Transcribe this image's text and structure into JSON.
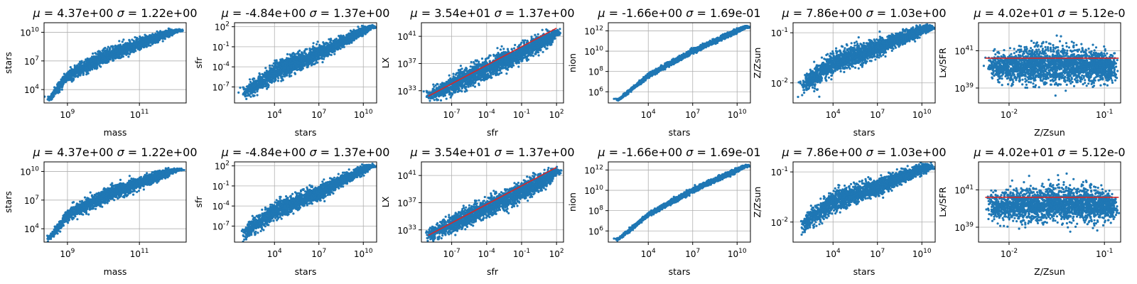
{
  "chart_data": [
    {
      "type": "scatter",
      "title": "$\\mu$ = 4.37e+00 $\\sigma$ = 1.22e+00",
      "title_mu": "4.37e+00",
      "title_sigma": "1.22e+00",
      "xlabel": "mass",
      "ylabel": "stars",
      "xscale": "log",
      "yscale": "log",
      "xlim_exp": [
        8.35,
        12.3
      ],
      "ylim_exp": [
        2.6,
        11.0
      ],
      "xticks_exp": [
        9,
        11
      ],
      "yticks_exp": [
        4,
        7,
        10
      ],
      "grid": true,
      "color": "#1f77b4",
      "cloud_exp": [
        [
          8.5,
          3.0,
          0.3
        ],
        [
          9.0,
          5.4,
          0.55
        ],
        [
          10.0,
          7.4,
          0.6
        ],
        [
          11.0,
          8.8,
          0.55
        ],
        [
          11.8,
          9.9,
          0.3
        ],
        [
          12.1,
          10.2,
          0.1
        ]
      ],
      "fit_line": null
    },
    {
      "type": "scatter",
      "title": "$\\mu$ = -4.84e+00 $\\sigma$ = 1.37e+00",
      "title_mu": "-4.84e+00",
      "title_sigma": "1.37e+00",
      "xlabel": "stars",
      "ylabel": "sfr",
      "xscale": "log",
      "yscale": "log",
      "xlim_exp": [
        1.3,
        10.9
      ],
      "ylim_exp": [
        -9.4,
        2.6
      ],
      "xticks_exp": [
        4,
        7,
        10
      ],
      "yticks_exp": [
        -7,
        -4,
        -1,
        2
      ],
      "grid": true,
      "color": "#1f77b4",
      "cloud_exp": [
        [
          2.0,
          -8.0,
          1.0
        ],
        [
          4.0,
          -4.8,
          1.2
        ],
        [
          7.0,
          -2.0,
          1.0
        ],
        [
          10.0,
          1.4,
          0.5
        ],
        [
          10.6,
          2.0,
          0.2
        ]
      ],
      "fit_line": null
    },
    {
      "type": "scatter",
      "title": "$\\mu$ = 3.54e+01 $\\sigma$ = 1.37e+00",
      "title_mu": "3.54e+01",
      "title_sigma": "1.37e+00",
      "xlabel": "sfr",
      "ylabel": "LX",
      "xscale": "log",
      "yscale": "log",
      "xlim_exp": [
        -9.6,
        2.6
      ],
      "ylim_exp": [
        31.2,
        43.0
      ],
      "xticks_exp": [
        -7,
        -4,
        -1,
        2
      ],
      "yticks_exp": [
        33,
        37,
        41
      ],
      "grid": true,
      "color": "#1f77b4",
      "cloud_exp": [
        [
          -9.0,
          32.2,
          0.8
        ],
        [
          -7.0,
          33.8,
          1.2
        ],
        [
          -4.0,
          36.2,
          1.3
        ],
        [
          -1.0,
          38.6,
          1.2
        ],
        [
          1.5,
          40.8,
          0.9
        ],
        [
          2.0,
          41.6,
          0.4
        ]
      ],
      "fit_line": {
        "x_exp": [
          -9.0,
          2.0
        ],
        "y_exp": [
          32.2,
          42.2
        ],
        "color": "#d62728"
      }
    },
    {
      "type": "scatter",
      "title": "$\\mu$ = -1.66e+00 $\\sigma$ = 1.69e-01",
      "title_mu": "-1.66e+00",
      "title_sigma": "1.69e-01",
      "xlabel": "stars",
      "ylabel": "nion",
      "xscale": "log",
      "yscale": "log",
      "xlim_exp": [
        1.3,
        10.9
      ],
      "ylim_exp": [
        4.9,
        12.8
      ],
      "xticks_exp": [
        4,
        7,
        10
      ],
      "yticks_exp": [
        6,
        8,
        10,
        12
      ],
      "grid": true,
      "color": "#1f77b4",
      "cloud_exp": [
        [
          2.0,
          5.2,
          0.12
        ],
        [
          4.0,
          7.6,
          0.18
        ],
        [
          7.0,
          10.0,
          0.2
        ],
        [
          10.0,
          12.0,
          0.18
        ],
        [
          10.6,
          12.4,
          0.1
        ]
      ],
      "fit_line": null
    },
    {
      "type": "scatter",
      "title": "$\\mu$ = 7.86e+00 $\\sigma$ = 1.03e+00",
      "title_mu": "7.86e+00",
      "title_sigma": "1.03e+00",
      "xlabel": "stars",
      "ylabel": "Z/Zsun",
      "xscale": "log",
      "yscale": "log",
      "xlim_exp": [
        1.3,
        10.9
      ],
      "ylim_exp": [
        -2.4,
        -0.8
      ],
      "xticks_exp": [
        4,
        7,
        10
      ],
      "yticks_exp": [
        -2,
        -1
      ],
      "grid": true,
      "color": "#1f77b4",
      "cloud_exp": [
        [
          2.0,
          -2.05,
          0.15
        ],
        [
          4.0,
          -1.6,
          0.2
        ],
        [
          7.0,
          -1.3,
          0.15
        ],
        [
          10.0,
          -0.95,
          0.08
        ],
        [
          10.6,
          -0.9,
          0.05
        ]
      ],
      "fit_line": null
    },
    {
      "type": "scatter",
      "title": "$\\mu$ = 4.02e+01 $\\sigma$ = 5.12e-0",
      "title_mu": "4.02e+01",
      "title_sigma": "5.12e-0",
      "xlabel": "Z/Zsun",
      "ylabel": "Lx/SFR",
      "xscale": "log",
      "yscale": "log",
      "xlim_exp": [
        -2.32,
        -0.83
      ],
      "ylim_exp": [
        38.2,
        42.5
      ],
      "xticks_exp": [
        -2,
        -1
      ],
      "yticks_exp": [
        39,
        41
      ],
      "grid": true,
      "color": "#1f77b4",
      "cloud_exp": [
        [
          -2.2,
          40.1,
          0.6
        ],
        [
          -1.8,
          40.2,
          0.8
        ],
        [
          -1.5,
          40.25,
          0.85
        ],
        [
          -1.2,
          40.2,
          0.8
        ],
        [
          -0.9,
          40.1,
          0.6
        ]
      ],
      "fit_line": {
        "x_exp": [
          -2.25,
          -0.85
        ],
        "y_exp": [
          40.6,
          40.6
        ],
        "color": "#d62728"
      }
    }
  ]
}
